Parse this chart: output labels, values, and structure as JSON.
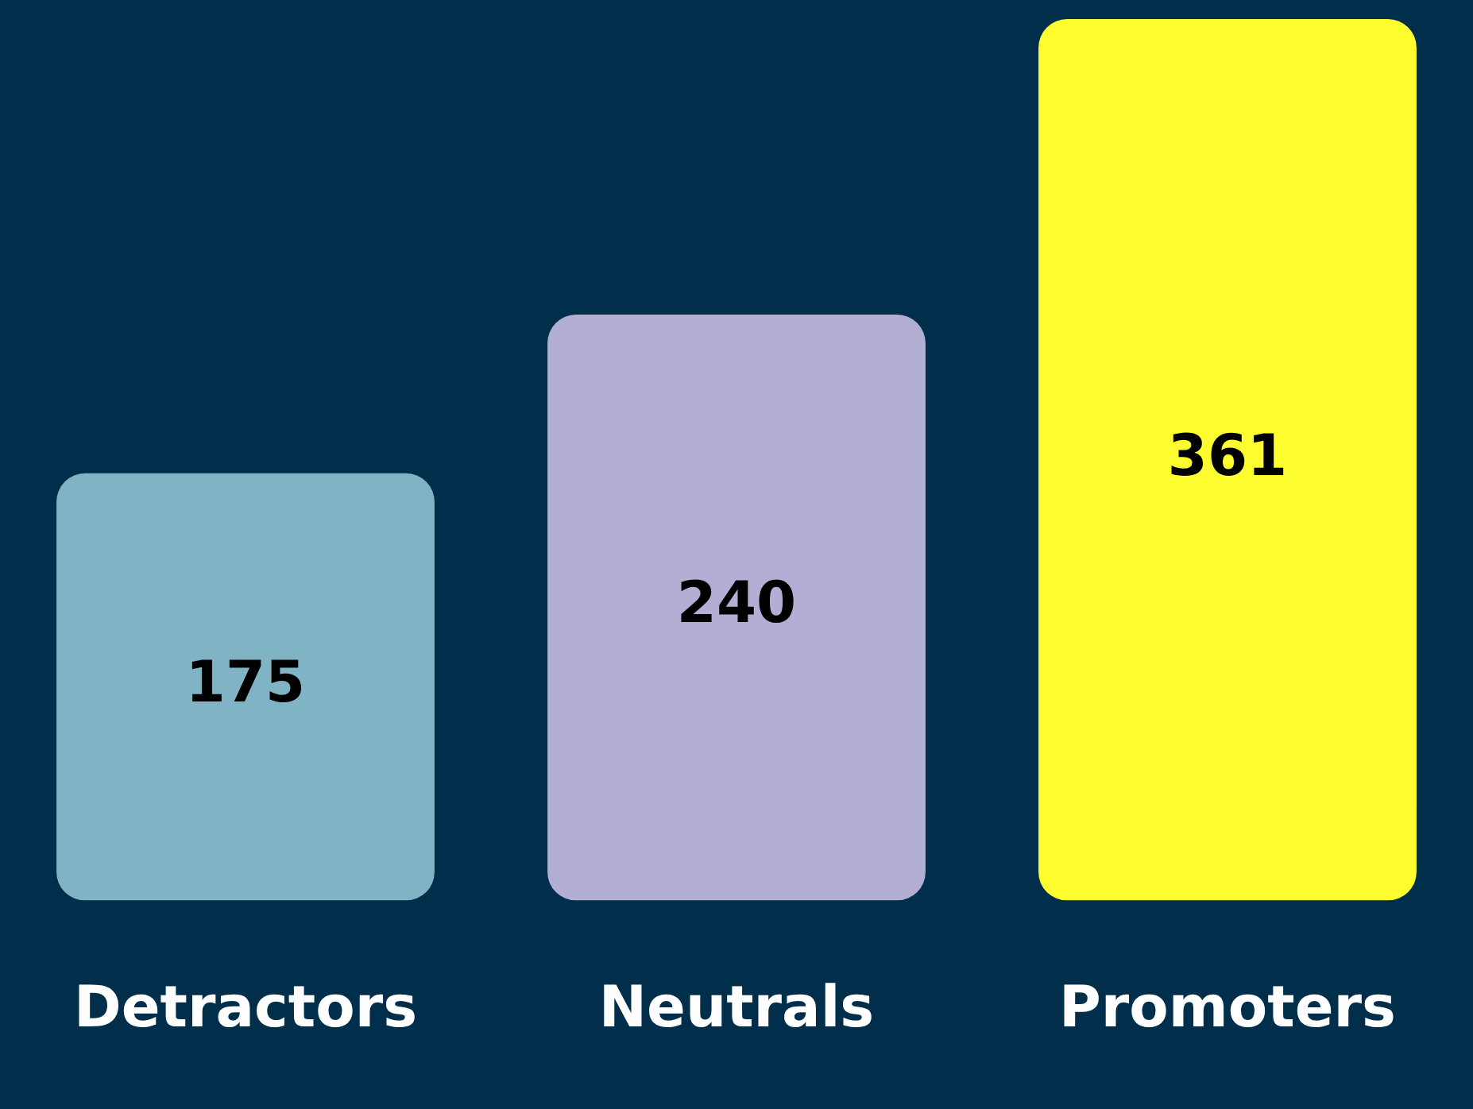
{
  "chart_data": {
    "type": "bar",
    "categories": [
      "Detractors",
      "Neutrals",
      "Promoters"
    ],
    "values": [
      175,
      240,
      361
    ],
    "colors": [
      "#80b3c4",
      "#b3aed3",
      "#fdfc2e"
    ],
    "data_labels": true,
    "grid": false,
    "legend": false,
    "tick_labels": "x"
  }
}
